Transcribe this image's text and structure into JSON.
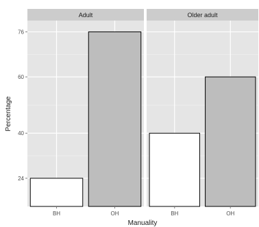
{
  "chart_data": {
    "type": "bar",
    "facets": [
      {
        "title": "Adult",
        "categories": [
          "BH",
          "OH"
        ],
        "values": [
          24,
          76
        ]
      },
      {
        "title": "Older adult",
        "categories": [
          "BH",
          "OH"
        ],
        "values": [
          40,
          60
        ]
      }
    ],
    "xlabel": "Manuality",
    "ylabel": "Percentage",
    "yticks": [
      24,
      40,
      60,
      76
    ],
    "ylim": [
      14,
      80
    ],
    "bar_fill": {
      "BH": "#ffffff",
      "OH": "#bdbdbd"
    },
    "bar_stroke": "#000000",
    "panel_background": "#e5e5e5",
    "strip_background": "#cccccc",
    "grid": true
  }
}
